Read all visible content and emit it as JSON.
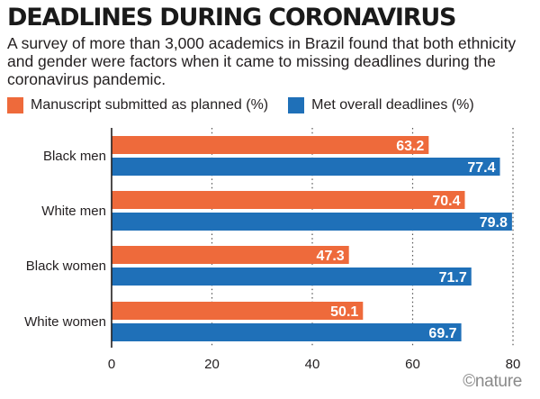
{
  "header": {
    "title": "DEADLINES DURING CORONAVIRUS",
    "subtitle": "A survey of more than 3,000 academics in Brazil found that both ethnicity and gender were factors when it came to missing deadlines during the coronavirus pandemic."
  },
  "legend": {
    "items": [
      {
        "label": "Manuscript submitted as planned (%)",
        "color": "#ee6a3b"
      },
      {
        "label": "Met overall deadlines (%)",
        "color": "#1f70b8"
      }
    ]
  },
  "chart_data": {
    "type": "bar",
    "orientation": "horizontal",
    "title": "DEADLINES DURING CORONAVIRUS",
    "xlabel": "",
    "ylabel": "",
    "categories": [
      "Black men",
      "White men",
      "Black women",
      "White women"
    ],
    "series": [
      {
        "name": "Manuscript submitted as planned (%)",
        "color": "#ee6a3b",
        "values": [
          63.2,
          70.4,
          47.3,
          50.1
        ]
      },
      {
        "name": "Met overall deadlines (%)",
        "color": "#1f70b8",
        "values": [
          77.4,
          79.8,
          71.7,
          69.7
        ]
      }
    ],
    "xlim": [
      0,
      80
    ],
    "xticks": [
      0,
      20,
      40,
      60,
      80
    ],
    "grid": "vertical-dotted",
    "legend_position": "top"
  },
  "credit": {
    "text": "©nature"
  }
}
